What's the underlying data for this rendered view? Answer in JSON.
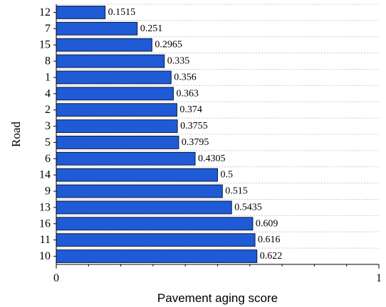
{
  "chart_data": {
    "type": "bar",
    "orientation": "horizontal",
    "categories": [
      "12",
      "7",
      "15",
      "8",
      "1",
      "4",
      "2",
      "3",
      "5",
      "6",
      "14",
      "9",
      "13",
      "16",
      "11",
      "10"
    ],
    "values": [
      0.1515,
      0.251,
      0.2965,
      0.335,
      0.356,
      0.363,
      0.374,
      0.3755,
      0.3795,
      0.4305,
      0.5,
      0.515,
      0.5435,
      0.609,
      0.616,
      0.622
    ],
    "value_labels": [
      "0.1515",
      "0.251",
      "0.2965",
      "0.335",
      "0.356",
      "0.363",
      "0.374",
      "0.3755",
      "0.3795",
      "0.4305",
      "0.5",
      "0.515",
      "0.5435",
      "0.609",
      "0.616",
      "0.622"
    ],
    "xlabel": "Pavement aging score",
    "ylabel": "Road",
    "xlim": [
      0,
      1
    ],
    "x_tick_labels": [
      "0",
      "1"
    ],
    "x_tick_values": [
      0,
      1
    ],
    "grid": true,
    "bar_color": "#1f5bd6",
    "bar_edge_color": "#0a1a45"
  }
}
